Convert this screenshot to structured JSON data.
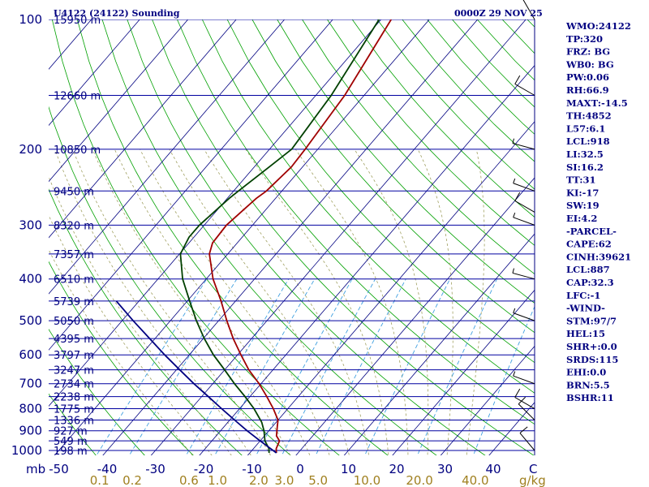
{
  "chart_data": {
    "type": "line",
    "title_left": "U4122 (24122) Sounding",
    "title_right": "0000Z 29 NOV 25",
    "pressure_levels": [
      100,
      200,
      300,
      400,
      500,
      600,
      700,
      800,
      900,
      1000
    ],
    "temperature_ticks": [
      -50,
      -40,
      -30,
      -20,
      -10,
      0,
      10,
      20,
      30,
      40
    ],
    "x_unit_label": "mb",
    "mixing_ratio_labels": [
      "0.1",
      "0.2",
      "0.6",
      "1.0",
      "2.0",
      "3.0",
      "5.0",
      "10.0",
      "20.0",
      "40.0"
    ],
    "mixing_ratio_unit": "g/kg",
    "axis_end_label": "C",
    "heights": [
      {
        "p": 100,
        "label": "15950 m"
      },
      {
        "p": 150,
        "label": "12660 m"
      },
      {
        "p": 200,
        "label": "10850 m"
      },
      {
        "p": 250,
        "label": "9450 m"
      },
      {
        "p": 300,
        "label": "8320 m"
      },
      {
        "p": 350,
        "label": "7357 m"
      },
      {
        "p": 400,
        "label": "6510 m"
      },
      {
        "p": 450,
        "label": "5739 m"
      },
      {
        "p": 500,
        "label": "5050 m"
      },
      {
        "p": 550,
        "label": "4395 m"
      },
      {
        "p": 600,
        "label": "3797 m"
      },
      {
        "p": 650,
        "label": "3247 m"
      },
      {
        "p": 700,
        "label": "2734 m"
      },
      {
        "p": 750,
        "label": "2238 m"
      },
      {
        "p": 800,
        "label": "1775 m"
      },
      {
        "p": 850,
        "label": "1336 m"
      },
      {
        "p": 900,
        "label": "927 m"
      },
      {
        "p": 950,
        "label": "549 m"
      },
      {
        "p": 1000,
        "label": "198 m"
      }
    ],
    "series": [
      {
        "key": "temperature",
        "color": "#a00000",
        "points": [
          {
            "p": 1013,
            "t": -4.5
          },
          {
            "p": 990,
            "t": -5.3
          },
          {
            "p": 950,
            "t": -6.0
          },
          {
            "p": 925,
            "t": -7.5
          },
          {
            "p": 880,
            "t": -9.0
          },
          {
            "p": 850,
            "t": -10.0
          },
          {
            "p": 800,
            "t": -13.0
          },
          {
            "p": 750,
            "t": -16.5
          },
          {
            "p": 700,
            "t": -20.4
          },
          {
            "p": 650,
            "t": -25.0
          },
          {
            "p": 600,
            "t": -29.3
          },
          {
            "p": 550,
            "t": -33.8
          },
          {
            "p": 500,
            "t": -38.3
          },
          {
            "p": 450,
            "t": -43.0
          },
          {
            "p": 400,
            "t": -48.6
          },
          {
            "p": 350,
            "t": -53.8
          },
          {
            "p": 330,
            "t": -55.1
          },
          {
            "p": 300,
            "t": -55.4
          },
          {
            "p": 260,
            "t": -54.0
          },
          {
            "p": 250,
            "t": -53.2
          },
          {
            "p": 220,
            "t": -52.3
          },
          {
            "p": 200,
            "t": -52.6
          },
          {
            "p": 150,
            "t": -54.0
          },
          {
            "p": 100,
            "t": -57.9
          }
        ]
      },
      {
        "key": "dewpoint",
        "color": "#004000",
        "points": [
          {
            "p": 1013,
            "t": -6.0
          },
          {
            "p": 990,
            "t": -6.8
          },
          {
            "p": 950,
            "t": -9.0
          },
          {
            "p": 900,
            "t": -11.0
          },
          {
            "p": 860,
            "t": -13.0
          },
          {
            "p": 800,
            "t": -17.0
          },
          {
            "p": 750,
            "t": -21.0
          },
          {
            "p": 700,
            "t": -25.5
          },
          {
            "p": 650,
            "t": -30.0
          },
          {
            "p": 600,
            "t": -35.0
          },
          {
            "p": 550,
            "t": -39.8
          },
          {
            "p": 500,
            "t": -44.6
          },
          {
            "p": 450,
            "t": -49.5
          },
          {
            "p": 400,
            "t": -54.9
          },
          {
            "p": 350,
            "t": -59.8
          },
          {
            "p": 320,
            "t": -61.0
          },
          {
            "p": 300,
            "t": -61.0
          },
          {
            "p": 260,
            "t": -59.6
          },
          {
            "p": 250,
            "t": -59.0
          },
          {
            "p": 220,
            "t": -56.9
          },
          {
            "p": 200,
            "t": -55.4
          },
          {
            "p": 150,
            "t": -56.8
          },
          {
            "p": 100,
            "t": -60.4
          }
        ]
      },
      {
        "key": "parcel",
        "color": "#000080",
        "points": [
          {
            "p": 1013,
            "t": -4.5
          },
          {
            "p": 950,
            "t": -10.0
          },
          {
            "p": 900,
            "t": -14.5
          },
          {
            "p": 850,
            "t": -19.0
          },
          {
            "p": 800,
            "t": -23.7
          },
          {
            "p": 750,
            "t": -28.6
          },
          {
            "p": 700,
            "t": -33.9
          },
          {
            "p": 650,
            "t": -39.3
          },
          {
            "p": 600,
            "t": -45.1
          },
          {
            "p": 550,
            "t": -51.1
          },
          {
            "p": 500,
            "t": -57.7
          },
          {
            "p": 450,
            "t": -64.7
          }
        ]
      }
    ],
    "wind_barbs": [
      {
        "p": 1000,
        "dir": 320,
        "spd": 10
      },
      {
        "p": 850,
        "dir": 315,
        "spd": 10
      },
      {
        "p": 800,
        "dir": 300,
        "spd": 10
      },
      {
        "p": 700,
        "dir": 290,
        "spd": 5
      },
      {
        "p": 500,
        "dir": 290,
        "spd": 5
      },
      {
        "p": 400,
        "dir": 285,
        "spd": 5
      },
      {
        "p": 300,
        "dir": 290,
        "spd": 5
      },
      {
        "p": 280,
        "dir": 300,
        "spd": 10
      },
      {
        "p": 250,
        "dir": 290,
        "spd": 5
      },
      {
        "p": 200,
        "dir": 285,
        "spd": 5
      },
      {
        "p": 150,
        "dir": 300,
        "spd": 10
      },
      {
        "p": 100,
        "dir": 330,
        "spd": 5
      }
    ]
  },
  "indices": [
    "WMO:24122",
    "TP:320",
    "FRZ: BG",
    "WB0: BG",
    "PW:0.06",
    "RH:66.9",
    "MAXT:-14.5",
    "TH:4852",
    "L57:6.1",
    "LCL:918",
    "LI:32.5",
    "SI:16.2",
    "TT:31",
    "KI:-17",
    "SW:19",
    "EI:4.2",
    "-PARCEL-",
    "CAPE:62",
    "CINH:39621",
    "LCL:887",
    "CAP:32.3",
    "LFC:-1",
    "-WIND-",
    "STM:97/7",
    "HEL:15",
    "SHR+:0.0",
    "SRDS:115",
    "EHI:0.0",
    "BRN:5.5",
    "BSHR:11"
  ],
  "colors": {
    "isobar": "#0000a0",
    "isotherm": "#000080",
    "dry_adiabat": "#00a000",
    "moist_adiabat": "#a0a060",
    "mixing_ratio": "#40a0e0",
    "text": "#000080"
  }
}
